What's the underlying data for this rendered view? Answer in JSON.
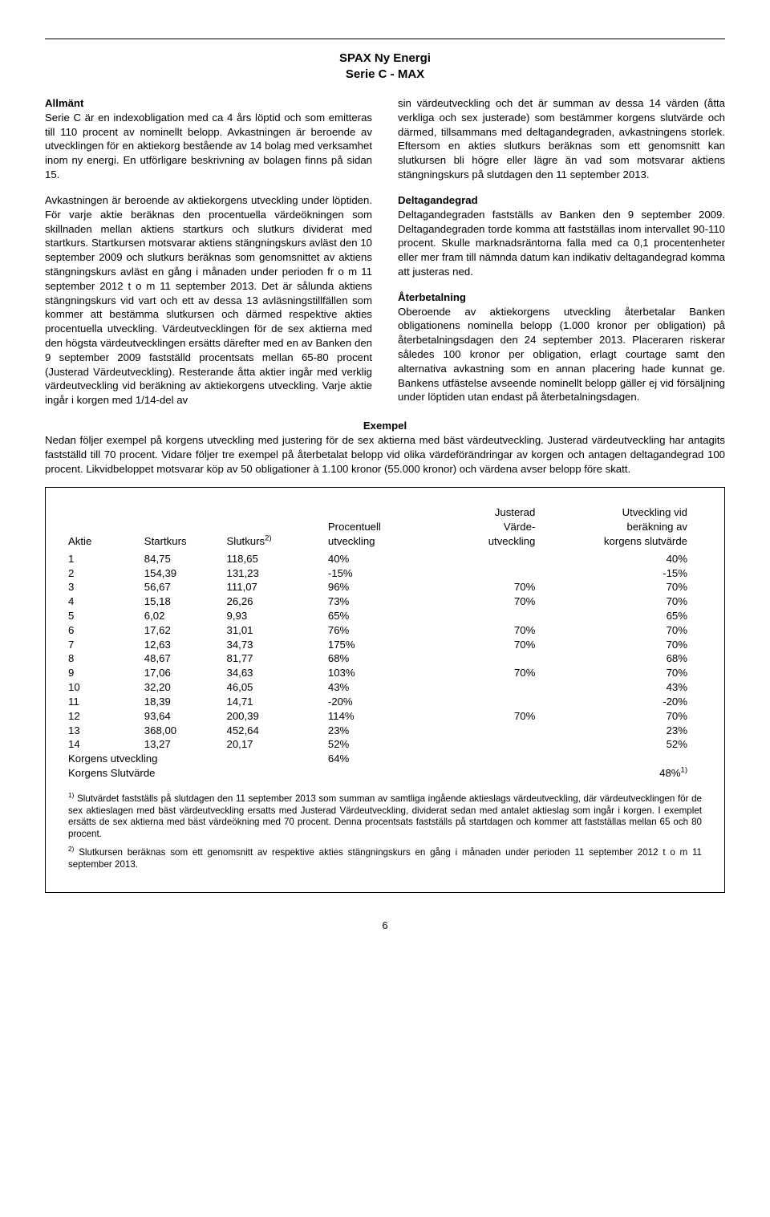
{
  "title_line1": "SPAX Ny Energi",
  "title_line2": "Serie C - MAX",
  "left": {
    "h1": "Allmänt",
    "p1": "Serie C är en indexobligation med ca 4 års löptid och som emitteras till 110 procent av nominellt belopp. Avkastningen är beroende av utvecklingen för en aktiekorg bestående av 14 bolag med verksamhet inom ny energi. En utförligare beskrivning av bolagen finns på sidan 15.",
    "p2": "Avkastningen är beroende av aktiekorgens utveckling under löptiden. För varje aktie beräknas den procentuella värdeökningen som skillnaden mellan aktiens startkurs och slutkurs dividerat med startkurs. Startkursen motsvarar aktiens stängningskurs avläst den 10 september 2009 och slutkurs beräknas som genomsnittet av aktiens stängningskurs avläst en gång i månaden under perioden fr o m 11 september 2012 t o m 11 september 2013. Det är sålunda aktiens stängningskurs vid vart och ett av dessa 13 avläsningstillfällen som kommer att bestämma slutkursen och därmed respektive akties procentuella utveckling. Värdeutvecklingen för de sex aktierna med den högsta värdeutvecklingen ersätts därefter med en av Banken den 9 september 2009 fastställd procentsats mellan 65-80 procent (Justerad Värdeutveckling). Resterande åtta aktier ingår med verklig värdeutveckling vid beräkning av aktiekorgens utveckling. Varje aktie ingår i korgen med 1/14-del av"
  },
  "right": {
    "p1": "sin värdeutveckling och det är summan av dessa 14 värden (åtta verkliga och sex justerade) som bestämmer korgens slutvärde och därmed, tillsammans med deltagandegraden, avkastningens storlek. Eftersom en akties slutkurs beräknas som ett genomsnitt kan slutkursen bli högre eller lägre än vad som motsvarar aktiens stängningskurs på slutdagen den 11 september 2013.",
    "h2": "Deltagandegrad",
    "p2": "Deltagandegraden fastställs av Banken den 9 september 2009. Deltagandegraden torde komma att fastställas inom intervallet 90-110 procent. Skulle marknadsräntorna falla med ca 0,1 procentenheter eller mer fram till nämnda datum kan indikativ deltagandegrad komma att justeras ned.",
    "h3": "Återbetalning",
    "p3": "Oberoende av aktiekorgens utveckling återbetalar Banken obligationens nominella belopp (1.000 kronor per obligation) på återbetalningsdagen den 24 september 2013. Placeraren riskerar således 100 kronor per obligation, erlagt courtage samt den alternativa avkastning som en annan placering hade kunnat ge. Bankens utfästelse avseende nominellt belopp gäller ej vid försäljning under löptiden utan endast på återbetalningsdagen."
  },
  "exempel": {
    "heading": "Exempel",
    "intro": "Nedan följer exempel på korgens utveckling med justering för de sex aktierna med bäst värdeutveckling. Justerad värdeutveckling har antagits fastställd till 70 procent. Vidare följer tre exempel på återbetalat belopp vid olika värdeförändringar av korgen och antagen deltagandegrad 100 procent. Likvidbeloppet motsvarar köp av 50 obligationer à 1.100 kronor (55.000 kronor) och värdena avser belopp före skatt."
  },
  "table": {
    "headers": {
      "aktie": "Aktie",
      "startkurs": "Startkurs",
      "slutkurs_pre": "Slutkurs",
      "slutkurs_sup": "2)",
      "proc_l1": "Procentuell",
      "proc_l2": "utveckling",
      "just_l1": "Justerad",
      "just_l2": "Värde-",
      "just_l3": "utveckling",
      "utv_l1": "Utveckling vid",
      "utv_l2": "beräkning av",
      "utv_l3": "korgens slutvärde"
    },
    "rows": [
      {
        "a": "1",
        "st": "84,75",
        "sl": "118,65",
        "p": "40%",
        "j": "",
        "u": "40%"
      },
      {
        "a": "2",
        "st": "154,39",
        "sl": "131,23",
        "p": "-15%",
        "j": "",
        "u": "-15%"
      },
      {
        "a": "3",
        "st": "56,67",
        "sl": "111,07",
        "p": "96%",
        "j": "70%",
        "u": "70%"
      },
      {
        "a": "4",
        "st": "15,18",
        "sl": "26,26",
        "p": "73%",
        "j": "70%",
        "u": "70%"
      },
      {
        "a": "5",
        "st": "6,02",
        "sl": "9,93",
        "p": "65%",
        "j": "",
        "u": "65%"
      },
      {
        "a": "6",
        "st": "17,62",
        "sl": "31,01",
        "p": "76%",
        "j": "70%",
        "u": "70%"
      },
      {
        "a": "7",
        "st": "12,63",
        "sl": "34,73",
        "p": "175%",
        "j": "70%",
        "u": "70%"
      },
      {
        "a": "8",
        "st": "48,67",
        "sl": "81,77",
        "p": "68%",
        "j": "",
        "u": "68%"
      },
      {
        "a": "9",
        "st": "17,06",
        "sl": "34,63",
        "p": "103%",
        "j": "70%",
        "u": "70%"
      },
      {
        "a": "10",
        "st": "32,20",
        "sl": "46,05",
        "p": "43%",
        "j": "",
        "u": "43%"
      },
      {
        "a": "11",
        "st": "18,39",
        "sl": "14,71",
        "p": "-20%",
        "j": "",
        "u": "-20%"
      },
      {
        "a": "12",
        "st": "93,64",
        "sl": "200,39",
        "p": "114%",
        "j": "70%",
        "u": "70%"
      },
      {
        "a": "13",
        "st": "368,00",
        "sl": "452,64",
        "p": "23%",
        "j": "",
        "u": "23%"
      },
      {
        "a": "14",
        "st": "13,27",
        "sl": "20,17",
        "p": "52%",
        "j": "",
        "u": "52%"
      }
    ],
    "summary": {
      "l1_label": "Korgens utveckling",
      "l1_val": "64%",
      "l2_label": "Korgens Slutvärde",
      "l2_val": "48%",
      "l2_sup": "1)"
    }
  },
  "footnotes": {
    "f1_sup": "1)",
    "f1": " Slutvärdet fastställs på slutdagen den 11 september 2013 som summan av samtliga ingående aktieslags värdeutveckling, där värdeutvecklingen för de sex aktieslagen med bäst värdeutveckling ersatts med Justerad Värdeutveckling, dividerat sedan med antalet aktieslag som ingår i korgen. I exemplet ersätts de sex aktierna med bäst värdeökning med 70 procent. Denna procentsats fastställs på startdagen och kommer att fastställas mellan 65 och 80 procent.",
    "f2_sup": "2)",
    "f2": " Slutkursen beräknas som ett genomsnitt av respektive akties stängningskurs en gång i månaden under perioden 11 september 2012 t o m 11 september 2013."
  },
  "page_number": "6"
}
